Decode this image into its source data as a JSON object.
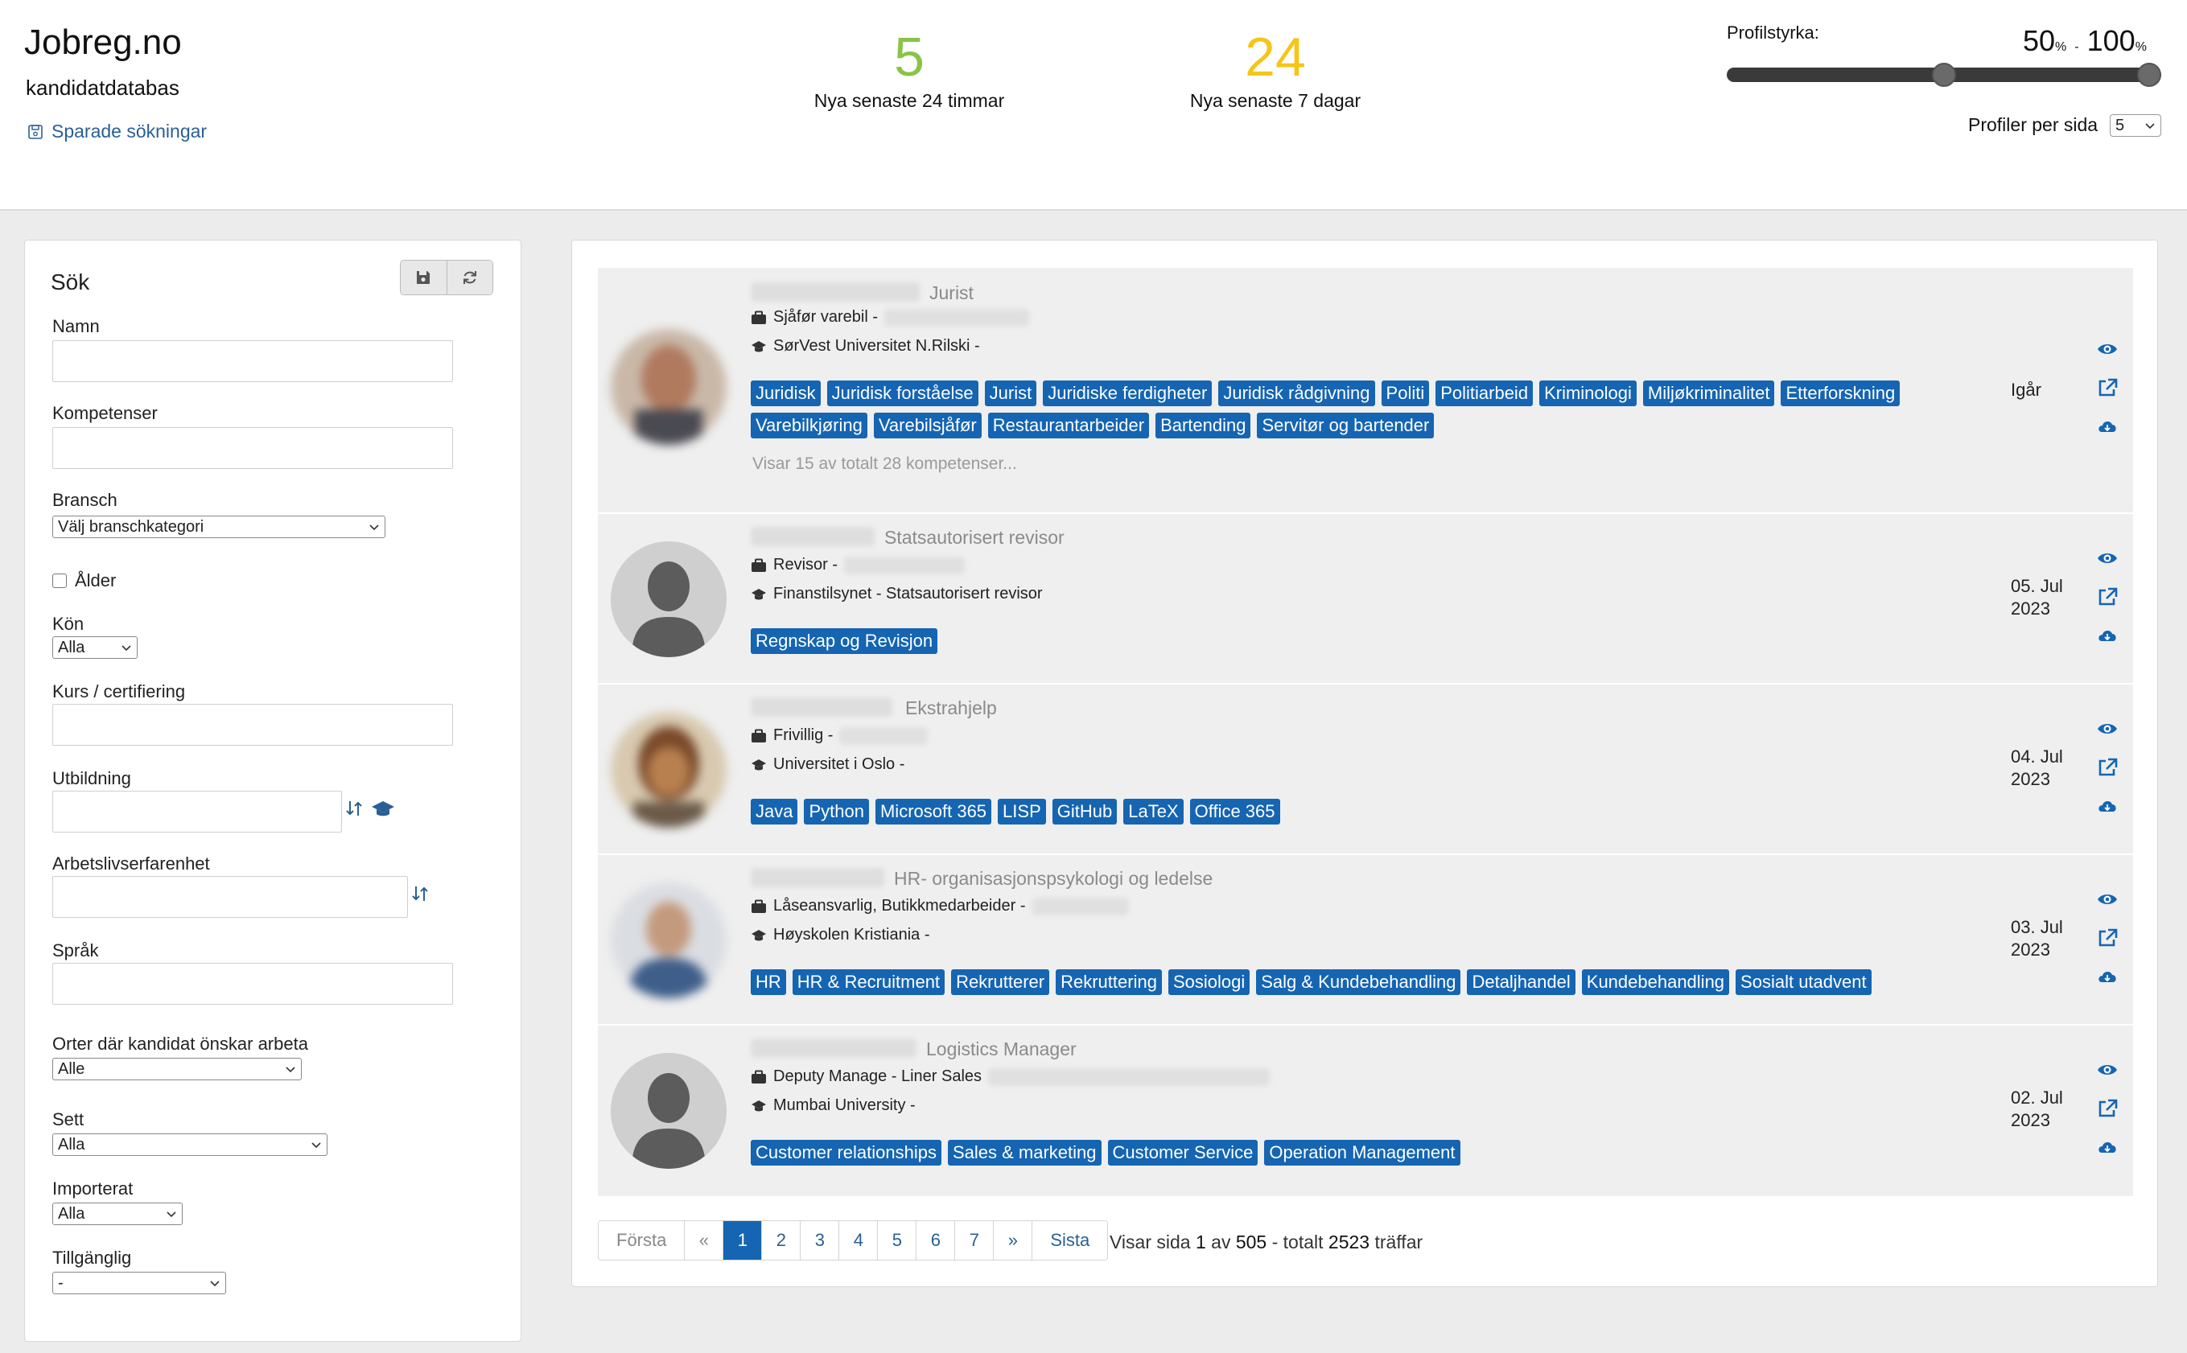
{
  "header": {
    "brand": "Jobreg.no",
    "subtitle": "kandidatdatabas",
    "saved_searches": "Sparade sökningar",
    "stats": [
      {
        "value": "5",
        "label": "Nya senaste 24 timmar",
        "color": "#8bc34a"
      },
      {
        "value": "24",
        "label": "Nya senaste 7 dagar",
        "color": "#f5c518"
      }
    ],
    "strength": {
      "label": "Profilstyrka:",
      "min": "50",
      "max": "100",
      "unit": "%",
      "separator": "-",
      "min_fraction": 0.5,
      "max_fraction": 1.0
    },
    "per_page": {
      "label": "Profiler per sida",
      "value": "5"
    }
  },
  "sidebar": {
    "title": "Sök",
    "fields": {
      "name": "Namn",
      "competences": "Kompetenser",
      "industry": "Bransch",
      "industry_value": "Välj branschkategori",
      "age": "Ålder",
      "gender": "Kön",
      "gender_value": "Alla",
      "course": "Kurs / certifiering",
      "education": "Utbildning",
      "experience": "Arbetslivserfarenhet",
      "language": "Språk",
      "locations": "Orter där kandidat önskar arbeta",
      "locations_value": "Alle",
      "seen": "Sett",
      "seen_value": "Alla",
      "imported": "Importerat",
      "imported_value": "Alla",
      "available": "Tillgänglig",
      "available_value": "-"
    }
  },
  "candidates": [
    {
      "role": "Jurist",
      "job": "Sjåfør varebil -",
      "school": "SørVest Universitet N.Rilski -",
      "tags": [
        "Juridisk",
        "Juridisk forståelse",
        "Jurist",
        "Juridiske ferdigheter",
        "Juridisk rådgivning",
        "Politi",
        "Politiarbeid",
        "Kriminologi",
        "Miljøkriminalitet",
        "Etterforskning",
        "Varebilkjøring",
        "Varebilsjåfør",
        "Restaurantarbeider",
        "Bartending",
        "Servitør og bartender"
      ],
      "more": "Visar 15 av totalt 28 kompetenser...",
      "date_line1": "Igår",
      "date_line2": ""
    },
    {
      "role": "Statsautorisert revisor",
      "job": "Revisor  -",
      "school": "Finanstilsynet - Statsautorisert revisor",
      "tags": [
        "Regnskap og Revisjon"
      ],
      "date_line1": "05. Jul",
      "date_line2": "2023"
    },
    {
      "role": "Ekstrahjelp",
      "job": "Frivillig -",
      "school": "Universitet i Oslo -",
      "tags": [
        "Java",
        "Python",
        "Microsoft 365",
        "LISP",
        "GitHub",
        "LaTeX",
        "Office 365"
      ],
      "date_line1": "04. Jul",
      "date_line2": "2023"
    },
    {
      "role": "HR- organisasjonspsykologi og ledelse",
      "job": "Låseansvarlig, Butikkmedarbeider -",
      "school": "Høyskolen Kristiania -",
      "tags": [
        "HR",
        "HR & Recruitment",
        "Rekrutterer",
        "Rekruttering",
        "Sosiologi",
        "Salg & Kundebehandling",
        "Detaljhandel",
        "Kundebehandling",
        "Sosialt utadvent"
      ],
      "date_line1": "03. Jul",
      "date_line2": "2023"
    },
    {
      "role": "Logistics Manager",
      "job": "Deputy Manage - Liner Sales",
      "school": "Mumbai University -",
      "tags": [
        "Customer relationships",
        "Sales & marketing",
        "Customer Service",
        "Operation Management"
      ],
      "date_line1": "02. Jul",
      "date_line2": "2023"
    }
  ],
  "pagination": {
    "first": "Första",
    "prev": "«",
    "pages": [
      "1",
      "2",
      "3",
      "4",
      "5",
      "6",
      "7"
    ],
    "current": "1",
    "next": "»",
    "last": "Sista",
    "info_prefix": "Visar sida",
    "info_page": "1",
    "info_of": "av",
    "info_total_pages": "505",
    "info_total_label": "- totalt",
    "info_hits": "2523",
    "info_suffix": "träffar"
  },
  "colors": {
    "accent": "#1565b2",
    "link": "#2a5f95"
  }
}
